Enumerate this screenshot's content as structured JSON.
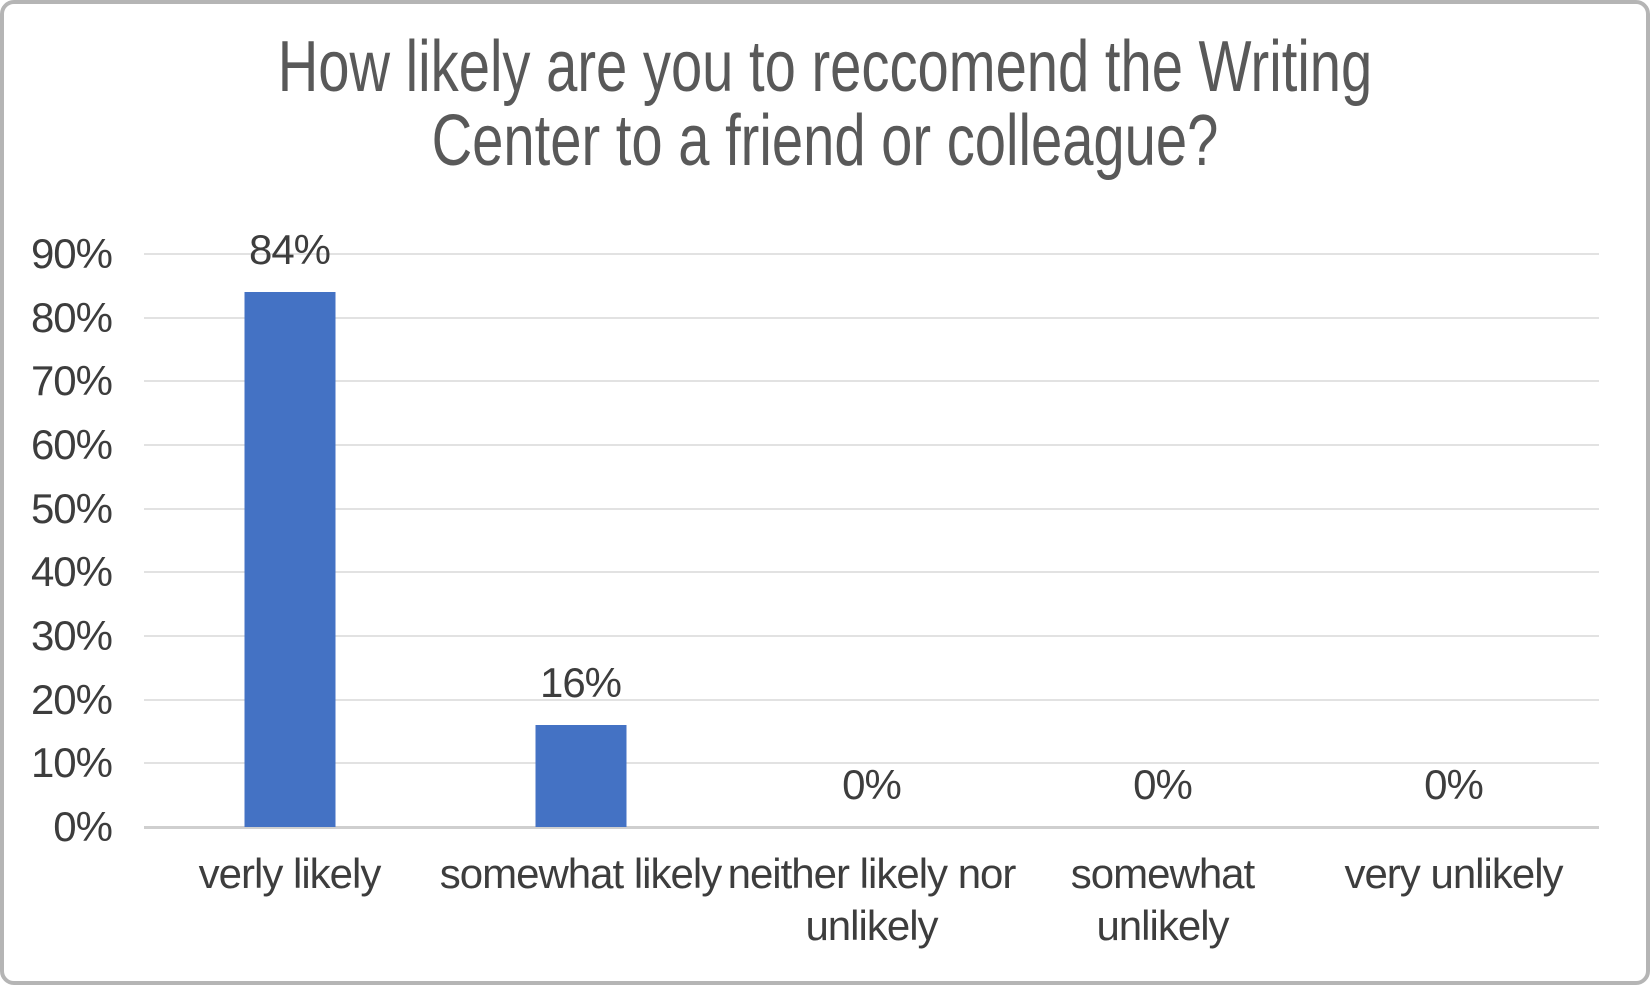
{
  "chart_data": {
    "type": "bar",
    "title": "How likely are you to reccomend the Writing Center to a friend or colleague?",
    "title_lines": [
      "How likely are you to reccomend the Writing",
      "Center to a friend or colleague?"
    ],
    "categories": [
      "verly likely",
      "somewhat likely",
      "neither likely nor\nunlikely",
      "somewhat\nunlikely",
      "very unlikely"
    ],
    "values": [
      84,
      16,
      0,
      0,
      0
    ],
    "data_labels": [
      "84%",
      "16%",
      "0%",
      "0%",
      "0%"
    ],
    "yticks": [
      "90%",
      "80%",
      "70%",
      "60%",
      "50%",
      "40%",
      "30%",
      "20%",
      "10%",
      "0%"
    ],
    "ytick_values": [
      90,
      80,
      70,
      60,
      50,
      40,
      30,
      20,
      10,
      0
    ],
    "ylim": [
      0,
      90
    ],
    "xlabel": "",
    "ylabel": "",
    "legend": "none",
    "grid": "horizontal",
    "colors": {
      "bar": "#4472C4",
      "gridline": "#e2e2e2",
      "axis_line": "#cfcfcf",
      "title_text": "#595959",
      "label_text": "#3d3d3d",
      "border": "#b5b5b5",
      "background": "#ffffff"
    }
  }
}
